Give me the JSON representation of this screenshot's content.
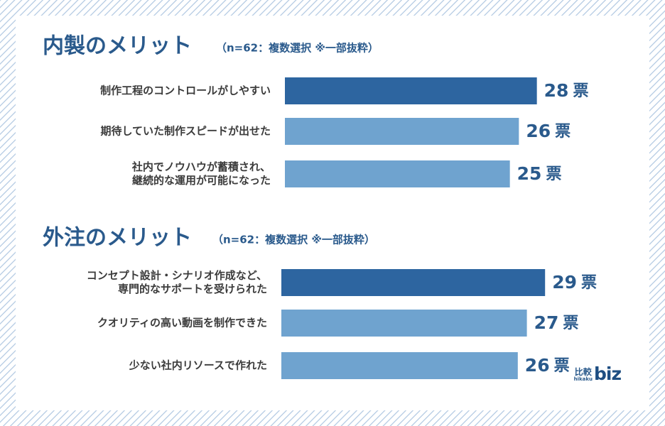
{
  "chart_data": [
    {
      "type": "bar",
      "orientation": "horizontal",
      "title": "内製のメリット",
      "subtitle": "（n=62：複数選択 ※一部抜粋）",
      "unit": "票",
      "categories": [
        [
          "制作工程のコントロールがしやすい"
        ],
        [
          "期待していた制作スピードが出せた"
        ],
        [
          "社内でノウハウが蓄積され、",
          "継続的な運用が可能になった"
        ]
      ],
      "values": [
        28,
        26,
        25
      ],
      "xlim": [
        0,
        30
      ],
      "highlight_index": 0
    },
    {
      "type": "bar",
      "orientation": "horizontal",
      "title": "外注のメリット",
      "subtitle": "（n=62：複数選択 ※一部抜粋）",
      "unit": "票",
      "categories": [
        [
          "コンセプト設計・シナリオ作成など、",
          "専門的なサポートを受けられた"
        ],
        [
          "クオリティの高い動画を制作できた"
        ],
        [
          "少ない社内リソースで作れた"
        ]
      ],
      "values": [
        29,
        27,
        26
      ],
      "xlim": [
        0,
        30
      ],
      "highlight_index": 0
    }
  ],
  "colors": {
    "highlight": "#2d65a0",
    "normal": "#6fa3cf",
    "accent": "#2a5a8c"
  },
  "logo": {
    "kanji": "比較",
    "roman": "hikaku",
    "mark": "biz"
  }
}
